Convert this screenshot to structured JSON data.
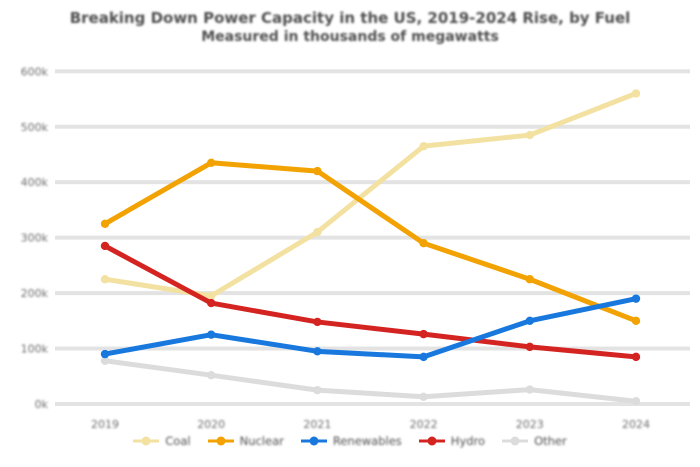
{
  "page": {
    "background": "#ffffff"
  },
  "chart": {
    "title_line1": "Breaking Down Power Capacity in the US, 2019-2024 Rise, by Fuel",
    "title_line2": "Measured in thousands of megawatts",
    "text_color": "#4f4f4f",
    "axis_text_color": "#6e6e6e",
    "gridline_color": "#e3e3e3"
  },
  "chart_data": {
    "type": "line",
    "title": "Breaking Down Power Capacity in the US, 2019-2024 Rise, by Fuel",
    "subtitle": "Measured in thousands of megawatts",
    "categories": [
      "2019",
      "2020",
      "2021",
      "2022",
      "2023",
      "2024"
    ],
    "series": [
      {
        "name": "Other",
        "color": "#dcdcdc",
        "values": [
          78,
          52,
          25,
          13,
          26,
          5
        ]
      },
      {
        "name": "Coal",
        "color": "#f3e1a2",
        "values": [
          225,
          195,
          310,
          465,
          485,
          560
        ]
      },
      {
        "name": "Nuclear",
        "color": "#f2a202",
        "values": [
          325,
          435,
          420,
          290,
          225,
          150
        ]
      },
      {
        "name": "Hydro",
        "color": "#d42422",
        "values": [
          285,
          182,
          148,
          126,
          103,
          85
        ]
      },
      {
        "name": "Renewables",
        "color": "#1878dd",
        "values": [
          90,
          125,
          95,
          85,
          150,
          190
        ]
      }
    ],
    "unit": "k",
    "xlabel": "",
    "ylabel": "",
    "ylim": [
      0,
      600
    ],
    "ytick_labels": [
      "0k",
      "100k",
      "200k",
      "300k",
      "400k",
      "500k",
      "600k"
    ],
    "grid": "horizontal",
    "legend_position": "bottom",
    "legend_order": [
      "Coal",
      "Nuclear",
      "Renewables",
      "Hydro",
      "Other"
    ]
  }
}
